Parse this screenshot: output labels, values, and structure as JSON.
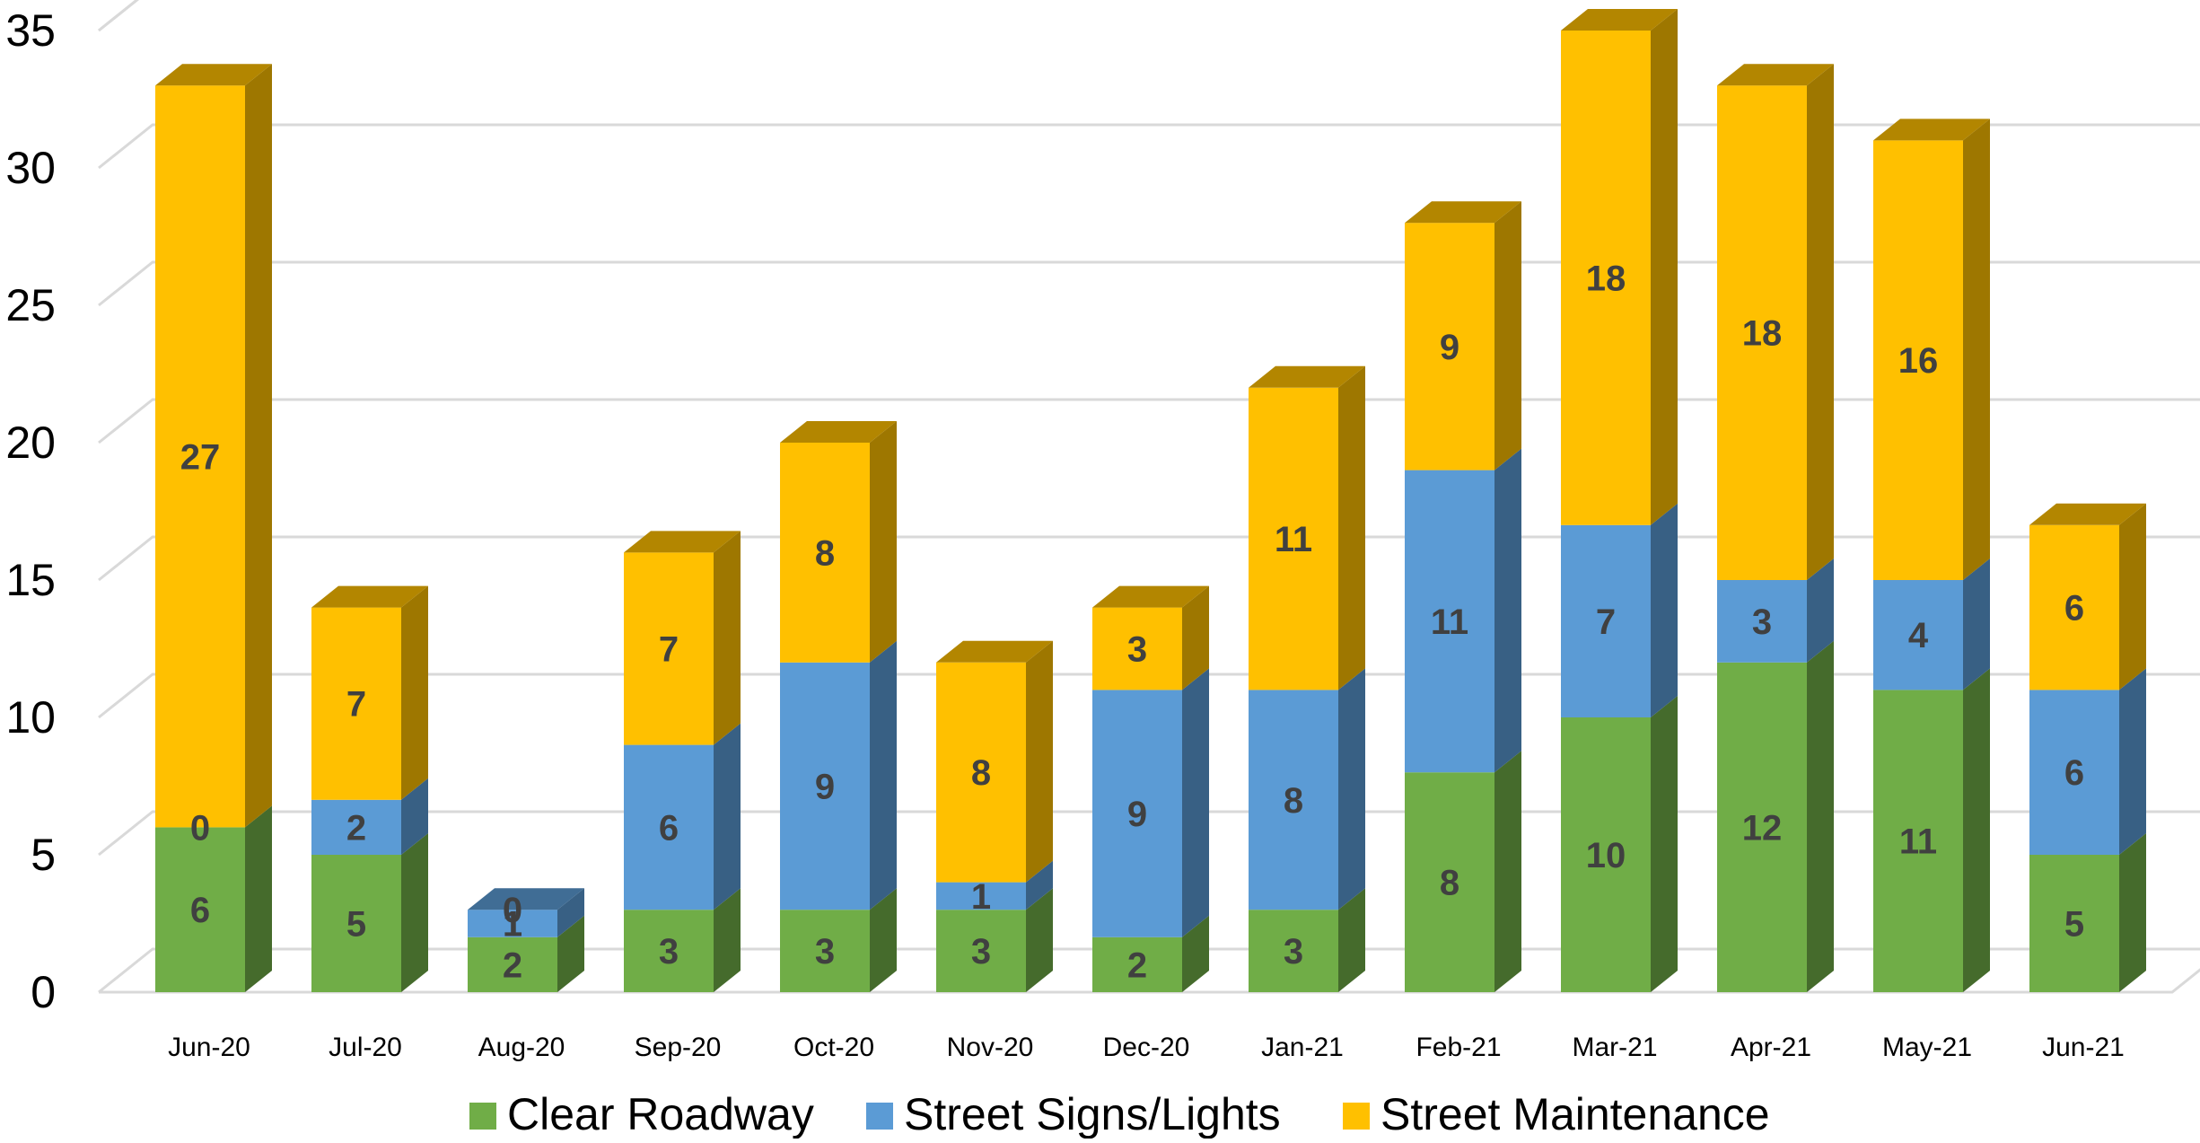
{
  "chart_data": {
    "type": "bar",
    "stacked": true,
    "style": "3d",
    "categories": [
      "Jun-20",
      "Jul-20",
      "Aug-20",
      "Sep-20",
      "Oct-20",
      "Nov-20",
      "Dec-20",
      "Jan-21",
      "Feb-21",
      "Mar-21",
      "Apr-21",
      "May-21",
      "Jun-21"
    ],
    "series": [
      {
        "name": "Clear Roadway",
        "color": "#70ad47",
        "values": [
          6,
          5,
          2,
          3,
          3,
          3,
          2,
          3,
          8,
          10,
          12,
          11,
          5
        ]
      },
      {
        "name": "Street Signs/Lights",
        "color": "#5b9bd5",
        "values": [
          0,
          2,
          1,
          6,
          9,
          1,
          9,
          8,
          11,
          7,
          3,
          4,
          6
        ]
      },
      {
        "name": "Street Maintenance",
        "color": "#ffc000",
        "values": [
          27,
          7,
          0,
          7,
          8,
          8,
          3,
          11,
          9,
          18,
          18,
          16,
          6
        ]
      }
    ],
    "yticks": [
      "0",
      "5",
      "10",
      "15",
      "20",
      "25",
      "30",
      "35"
    ],
    "ylim": [
      0,
      35
    ],
    "grid": true,
    "legend_position": "bottom",
    "data_labels": true
  }
}
